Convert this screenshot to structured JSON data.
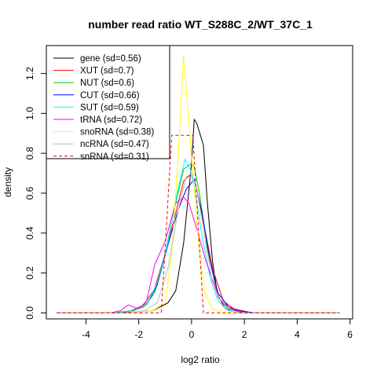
{
  "chart_data": {
    "type": "line",
    "title": "number read ratio WT_S288C_2/WT_37C_1",
    "xlabel": "log2 ratio",
    "ylabel": "density",
    "xlim": [
      -5.5,
      6.1
    ],
    "ylim": [
      -0.03,
      1.34
    ],
    "xticks": [
      -4,
      -2,
      0,
      2,
      4,
      6
    ],
    "yticks": [
      0.0,
      0.2,
      0.4,
      0.6,
      0.8,
      1.0,
      1.2
    ],
    "xtick_labels": [
      "-4",
      "-2",
      "0",
      "2",
      "4",
      "6"
    ],
    "ytick_labels": [
      "0.0",
      "0.2",
      "0.4",
      "0.6",
      "0.8",
      "1.0",
      "1.2"
    ],
    "grid": false,
    "legend_position": "top-left",
    "series": [
      {
        "name": "gene (sd=0.56)",
        "color": "#000000",
        "dash": "solid",
        "x": [
          -5.1,
          -3.0,
          -2.0,
          -1.5,
          -1.2,
          -0.9,
          -0.6,
          -0.3,
          0.0,
          0.1,
          0.2,
          0.45,
          0.6,
          0.8,
          1.0,
          1.3,
          1.8,
          2.5,
          5.6
        ],
        "y": [
          0.0,
          0.0,
          0.005,
          0.01,
          0.03,
          0.05,
          0.11,
          0.35,
          0.75,
          0.97,
          0.95,
          0.84,
          0.55,
          0.25,
          0.08,
          0.02,
          0.005,
          0.0,
          0.0
        ]
      },
      {
        "name": "XUT (sd=0.7)",
        "color": "#ff0000",
        "dash": "solid",
        "x": [
          -5.1,
          -3.0,
          -2.3,
          -1.8,
          -1.4,
          -1.0,
          -0.6,
          -0.3,
          0.0,
          0.2,
          0.5,
          0.8,
          1.2,
          1.6,
          2.3,
          5.6
        ],
        "y": [
          0.0,
          0.0,
          0.01,
          0.04,
          0.12,
          0.3,
          0.5,
          0.66,
          0.7,
          0.62,
          0.42,
          0.22,
          0.06,
          0.02,
          0.0,
          0.0
        ]
      },
      {
        "name": "NUT (sd=0.6)",
        "color": "#00cc00",
        "dash": "solid",
        "x": [
          -5.1,
          -3.0,
          -2.3,
          -1.8,
          -1.4,
          -1.0,
          -0.6,
          -0.3,
          0.0,
          0.1,
          0.3,
          0.6,
          1.0,
          1.4,
          2.2,
          5.6
        ],
        "y": [
          0.0,
          0.0,
          0.01,
          0.03,
          0.1,
          0.3,
          0.55,
          0.72,
          0.75,
          0.73,
          0.6,
          0.32,
          0.08,
          0.02,
          0.0,
          0.0
        ]
      },
      {
        "name": "CUT (sd=0.66)",
        "color": "#0000ff",
        "dash": "solid",
        "x": [
          -5.1,
          -3.0,
          -2.2,
          -1.7,
          -1.3,
          -0.9,
          -0.5,
          -0.2,
          0.1,
          0.4,
          0.7,
          1.0,
          1.4,
          1.8,
          2.4,
          5.6
        ],
        "y": [
          0.0,
          0.0,
          0.01,
          0.04,
          0.14,
          0.34,
          0.52,
          0.62,
          0.67,
          0.5,
          0.26,
          0.1,
          0.03,
          0.01,
          0.0,
          0.0
        ]
      },
      {
        "name": "SUT (sd=0.59)",
        "color": "#00ffff",
        "dash": "solid",
        "x": [
          -5.1,
          -3.0,
          -2.2,
          -1.7,
          -1.3,
          -0.9,
          -0.55,
          -0.25,
          -0.05,
          0.15,
          0.4,
          0.7,
          1.0,
          1.4,
          2.2,
          5.6
        ],
        "y": [
          0.0,
          0.0,
          0.01,
          0.04,
          0.15,
          0.35,
          0.6,
          0.77,
          0.72,
          0.6,
          0.38,
          0.18,
          0.06,
          0.01,
          0.0,
          0.0
        ]
      },
      {
        "name": "tRNA (sd=0.72)",
        "color": "#ff00ff",
        "dash": "solid",
        "x": [
          -5.1,
          -3.1,
          -2.7,
          -2.4,
          -2.0,
          -1.7,
          -1.4,
          -1.0,
          -0.6,
          -0.3,
          -0.1,
          0.2,
          0.5,
          0.8,
          1.1,
          1.5,
          2.0,
          5.6
        ],
        "y": [
          0.0,
          0.0,
          0.01,
          0.04,
          0.02,
          0.06,
          0.24,
          0.36,
          0.55,
          0.58,
          0.55,
          0.42,
          0.28,
          0.16,
          0.06,
          0.02,
          0.0,
          0.0
        ]
      },
      {
        "name": "snoRNA (sd=0.38)",
        "color": "#ffff00",
        "dash": "solid",
        "x": [
          -5.1,
          -2.5,
          -1.5,
          -1.0,
          -0.75,
          -0.5,
          -0.3,
          -0.1,
          0.1,
          0.3,
          0.5,
          0.8,
          1.2,
          5.6
        ],
        "y": [
          0.0,
          0.0,
          0.01,
          0.05,
          0.3,
          0.8,
          1.29,
          0.95,
          0.62,
          0.3,
          0.1,
          0.02,
          0.0,
          0.0
        ]
      },
      {
        "name": "ncRNA (sd=0.47)",
        "color": "#bebebe",
        "dash": "solid",
        "x": [
          -5.1,
          -2.5,
          -1.8,
          -1.3,
          -0.9,
          -0.5,
          -0.2,
          0.0,
          0.2,
          0.5,
          0.8,
          1.2,
          1.8,
          5.6
        ],
        "y": [
          0.0,
          0.0,
          0.01,
          0.05,
          0.22,
          0.52,
          0.68,
          0.7,
          0.62,
          0.38,
          0.14,
          0.03,
          0.0,
          0.0
        ]
      },
      {
        "name": "snRNA (sd=0.31)",
        "color": "#ff0000",
        "dash": "dashed",
        "x": [
          -5.1,
          -1.15,
          -0.75,
          0.05,
          0.45,
          0.55,
          0.6,
          5.6
        ],
        "y": [
          0.0,
          0.0,
          0.89,
          0.89,
          0.0,
          0.0,
          0.0,
          0.0
        ]
      }
    ]
  }
}
